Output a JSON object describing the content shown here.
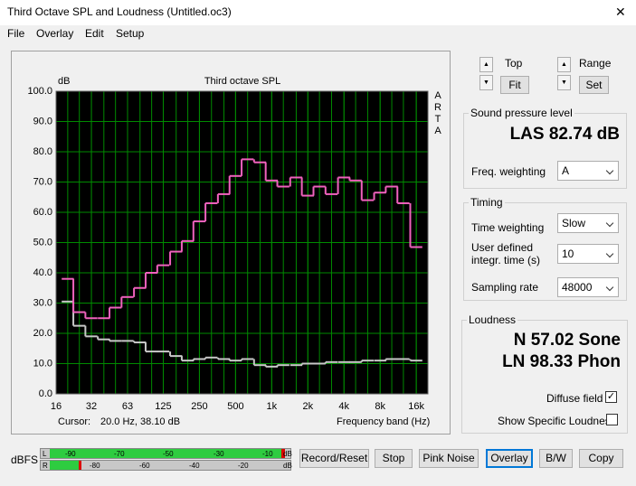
{
  "window": {
    "title": "Third Octave SPL and Loudness (Untitled.oc3)",
    "close": "✕"
  },
  "menu": [
    "File",
    "Overlay",
    "Edit",
    "Setup"
  ],
  "chart_data": {
    "type": "step",
    "title": "Third octave SPL",
    "ylabel": "dB",
    "xlabel": "Frequency band (Hz)",
    "side_label": "ARTA",
    "cursor_label": "Cursor:",
    "cursor_value": "20.0 Hz, 38.10 dB",
    "xscale": "log",
    "grid": true,
    "grid_color": "#008a00",
    "background": "#000000",
    "xlim": [
      16,
      20000
    ],
    "ylim": [
      0,
      100
    ],
    "xticks": [
      16,
      {
        "value": 31.5,
        "label": "32"
      },
      63,
      125,
      250,
      500,
      {
        "value": 1000,
        "label": "1k"
      },
      {
        "value": 2000,
        "label": "2k"
      },
      {
        "value": 4000,
        "label": "4k"
      },
      {
        "value": 8000,
        "label": "8k"
      },
      {
        "value": 16000,
        "label": "16k"
      }
    ],
    "yticks": [
      {
        "value": 0,
        "label": "0.0"
      },
      {
        "value": 10,
        "label": "10.0"
      },
      {
        "value": 20,
        "label": "20.0"
      },
      {
        "value": 30,
        "label": "30.0"
      },
      {
        "value": 40,
        "label": "40.0"
      },
      {
        "value": 50,
        "label": "50.0"
      },
      {
        "value": 60,
        "label": "60.0"
      },
      {
        "value": 70,
        "label": "70.0"
      },
      {
        "value": 80,
        "label": "80.0"
      },
      {
        "value": 90,
        "label": "90.0"
      },
      {
        "value": 100,
        "label": "100.0"
      }
    ],
    "x": [
      20,
      25,
      31.5,
      40,
      50,
      63,
      80,
      100,
      125,
      160,
      200,
      250,
      315,
      400,
      500,
      630,
      800,
      1000,
      1250,
      1600,
      2000,
      2500,
      3150,
      4000,
      5000,
      6300,
      8000,
      10000,
      12500,
      16000
    ],
    "series": [
      {
        "color": "#f062bd",
        "values": [
          38,
          27,
          25,
          25,
          28.5,
          32,
          35,
          40,
          42.5,
          47,
          50.5,
          57,
          63,
          66,
          72,
          77.5,
          76.5,
          70.5,
          68.5,
          71.5,
          65.5,
          68.5,
          66,
          71.5,
          70.5,
          64,
          66.5,
          68.5,
          63,
          48.5
        ]
      },
      {
        "color": "#c8c8c8",
        "values": [
          30.5,
          22.5,
          19,
          18,
          17.5,
          17.5,
          17,
          14,
          14,
          12.5,
          11,
          11.5,
          12,
          11.5,
          11,
          11.5,
          9.5,
          9,
          9.5,
          9.5,
          10,
          10,
          10.5,
          10.5,
          10.5,
          11,
          11,
          11.5,
          11.5,
          11
        ]
      }
    ]
  },
  "controls": {
    "top_label": "Top",
    "fit": "Fit",
    "range_label": "Range",
    "set": "Set"
  },
  "spl": {
    "title": "Sound pressure level",
    "reading": "LAS 82.74 dB",
    "freq_weighting_label": "Freq. weighting",
    "freq_weighting": "A"
  },
  "timing": {
    "title": "Timing",
    "time_weighting_label": "Time weighting",
    "time_weighting": "Slow",
    "integr_label": [
      "User defined",
      "integr. time (s)"
    ],
    "integr_time": "10",
    "sampling_rate_label": "Sampling rate",
    "sampling_rate": "48000"
  },
  "loudness": {
    "title": "Loudness",
    "n": "N 57.02 Sone",
    "ln": "LN 98.33 Phon",
    "diffuse_field": "Diffuse field",
    "show_specific": "Show Specific Loudness"
  },
  "meter": {
    "label": "dBFS",
    "left": "L",
    "right": "R",
    "top_scale": [
      "-90",
      "-70",
      "-50",
      "-30",
      "-10",
      "dB"
    ],
    "bottom_scale": [
      "-80",
      "-60",
      "-40",
      "-20",
      "dB"
    ]
  },
  "buttons": [
    "Record/Reset",
    "Stop",
    "Pink Noise",
    "Overlay",
    "B/W",
    "Copy"
  ]
}
